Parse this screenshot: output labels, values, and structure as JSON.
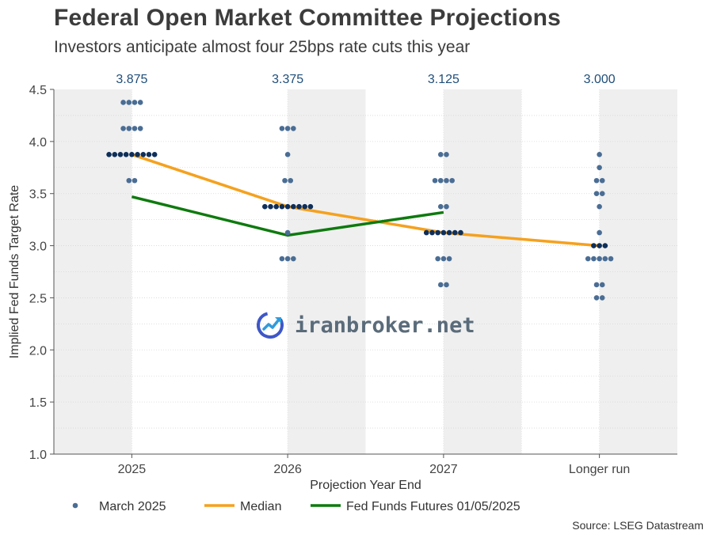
{
  "header": {
    "title": "Federal Open Market Committee Projections",
    "subtitle": "Investors anticipate almost four 25bps rate cuts this year"
  },
  "watermark": {
    "text": "iranbroker.net",
    "icon": "chart-growth-icon",
    "color": "#5a6b7a"
  },
  "source": "Source: LSEG Datastream",
  "chart_data": {
    "type": "scatter",
    "title": "Federal Open Market Committee Projections",
    "subtitle": "Investors anticipate almost four 25bps rate cuts this year",
    "xlabel": "Projection Year End",
    "ylabel": "Implied Fed Funds Target Rate",
    "categories": [
      "2025",
      "2026",
      "2027",
      "Longer run"
    ],
    "ylim": [
      1.0,
      4.5
    ],
    "yticks": [
      "1.0",
      "1.5",
      "2.0",
      "2.5",
      "3.0",
      "3.5",
      "4.0",
      "4.5"
    ],
    "grid": true,
    "legend_position": "bottom",
    "median_labels": [
      "3.875",
      "3.375",
      "3.125",
      "3.000"
    ],
    "colors": {
      "dots": "#4a6d94",
      "median_dots": "#0e2f5a",
      "median": "#f5a11e",
      "futures": "#0e7a0e",
      "band": "#efefef",
      "label": "#1f4e79"
    },
    "series": [
      {
        "name": "March 2025",
        "kind": "dots",
        "points": [
          {
            "x": "2025",
            "y": 4.375,
            "count": 4
          },
          {
            "x": "2025",
            "y": 4.125,
            "count": 4
          },
          {
            "x": "2025",
            "y": 3.875,
            "count": 9
          },
          {
            "x": "2025",
            "y": 3.625,
            "count": 2
          },
          {
            "x": "2026",
            "y": 4.125,
            "count": 3
          },
          {
            "x": "2026",
            "y": 3.875,
            "count": 1
          },
          {
            "x": "2026",
            "y": 3.625,
            "count": 2
          },
          {
            "x": "2026",
            "y": 3.375,
            "count": 9
          },
          {
            "x": "2026",
            "y": 3.125,
            "count": 1
          },
          {
            "x": "2026",
            "y": 2.875,
            "count": 3
          },
          {
            "x": "2027",
            "y": 3.875,
            "count": 2
          },
          {
            "x": "2027",
            "y": 3.625,
            "count": 4
          },
          {
            "x": "2027",
            "y": 3.375,
            "count": 2
          },
          {
            "x": "2027",
            "y": 3.125,
            "count": 7
          },
          {
            "x": "2027",
            "y": 2.875,
            "count": 3
          },
          {
            "x": "2027",
            "y": 2.625,
            "count": 2
          },
          {
            "x": "Longer run",
            "y": 3.875,
            "count": 1
          },
          {
            "x": "Longer run",
            "y": 3.75,
            "count": 1
          },
          {
            "x": "Longer run",
            "y": 3.625,
            "count": 2
          },
          {
            "x": "Longer run",
            "y": 3.5,
            "count": 2
          },
          {
            "x": "Longer run",
            "y": 3.375,
            "count": 1
          },
          {
            "x": "Longer run",
            "y": 3.125,
            "count": 1
          },
          {
            "x": "Longer run",
            "y": 3.0,
            "count": 3
          },
          {
            "x": "Longer run",
            "y": 2.875,
            "count": 5
          },
          {
            "x": "Longer run",
            "y": 2.625,
            "count": 2
          },
          {
            "x": "Longer run",
            "y": 2.5,
            "count": 2
          }
        ]
      },
      {
        "name": "Median",
        "kind": "line",
        "x": [
          "2025",
          "2026",
          "2027",
          "Longer run"
        ],
        "values": [
          3.875,
          3.375,
          3.125,
          3.0
        ]
      },
      {
        "name": "Fed Funds Futures 01/05/2025",
        "kind": "line",
        "x": [
          "2025",
          "2026",
          "2027"
        ],
        "values": [
          3.47,
          3.1,
          3.32
        ]
      }
    ]
  }
}
